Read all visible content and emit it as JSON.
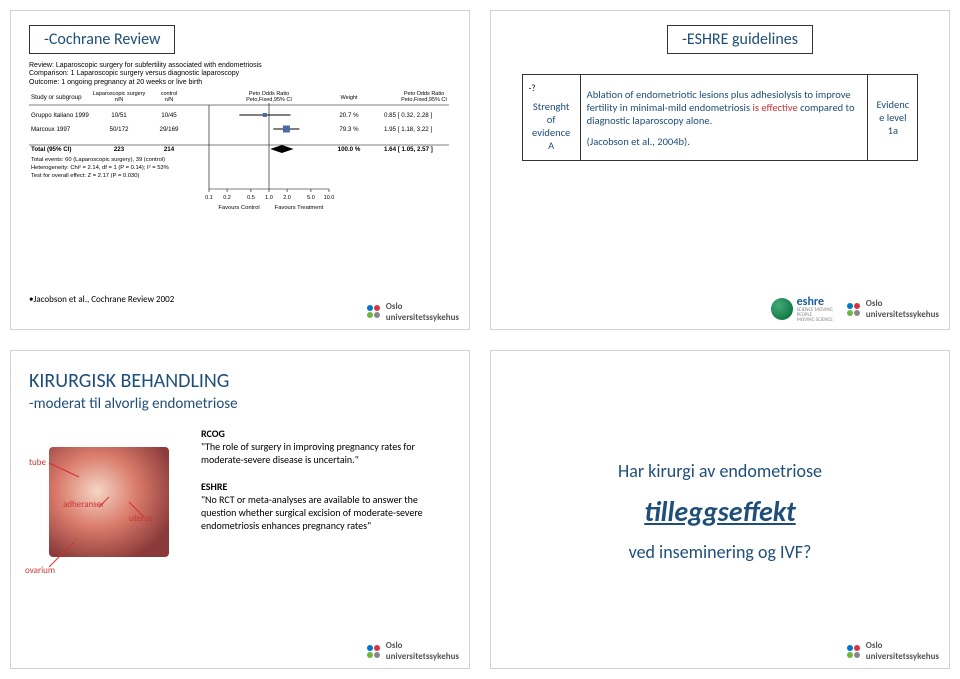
{
  "slide1": {
    "title": "-Cochrane Review",
    "forest": {
      "review_line": "Review: Laparoscopic surgery for subfertility associated with endometriosis",
      "comparison_line": "Comparison: 1 Laparoscopic surgery versus diagnostic laparoscopy",
      "outcome_line": "Outcome: 1 ongoing pregnancy at 20 weeks or live birth",
      "headers": [
        "Study or subgroup",
        "Laparoscopic surgery n/N",
        "control n/N",
        "Peto Odds Ratio Peto,Fixed,95% CI",
        "Weight",
        "Peto Odds Ratio Peto,Fixed,95% CI"
      ],
      "rows": [
        {
          "study": "Gruppo Italiano 1999",
          "t": "10/51",
          "c": "10/45",
          "weight": "20.7 %",
          "or": "0.85 [ 0.32, 2.28 ]",
          "x": 0.85,
          "lo": 0.32,
          "hi": 2.28
        },
        {
          "study": "Marcoux 1997",
          "t": "50/172",
          "c": "29/169",
          "weight": "79.3 %",
          "or": "1.95 [ 1.18, 3.22 ]",
          "x": 1.95,
          "lo": 1.18,
          "hi": 3.22
        }
      ],
      "total_label": "Total (95% CI)",
      "total_t": "223",
      "total_c": "214",
      "total_weight": "100.0 %",
      "total_or": "1.64 [ 1.05, 2.57 ]",
      "total_x": 1.64,
      "total_lo": 1.05,
      "total_hi": 2.57,
      "events": "Total events: 60 (Laparoscopic surgery), 39 (control)",
      "het": "Heterogeneity: Chi² = 2.14, df = 1 (P = 0.14); I² = 53%",
      "overall": "Test for overall effect: Z = 2.17 (P = 0.030)",
      "ticks": [
        "0.1",
        "0.2",
        "0.5",
        "1.0",
        "2.0",
        "5.0",
        "10.0"
      ],
      "fav_l": "Favours Control",
      "fav_r": "Favours Treatment"
    },
    "ref": "•Jacobson et al., Cochrane Review 2002",
    "logo_text": "Oslo\nuniversitetssykehus"
  },
  "slide2": {
    "title": "-ESHRE guidelines",
    "col1_top": "-?",
    "col1_a": "Strenght of evidence",
    "col1_b": "A",
    "col2": "Ablation of endometriotic lesions plus adhesiolysis to improve fertility in minimal-mild endometriosis is effective compared to diagnostic laparoscopy alone.",
    "col2_ref": "(Jacobson et al., 2004b).",
    "col3_a": "Evidenc e level",
    "col3_b": "1a",
    "eshre_label": "eshre",
    "logo_text": "Oslo\nuniversitetssykehus"
  },
  "slide3": {
    "title": "KIRURGISK BEHANDLING",
    "subtitle": "-moderat til alvorlig endometriose",
    "labels": {
      "tube": "tube",
      "adh": "adheranser",
      "uterus": "uterus",
      "ovarium": "ovarium"
    },
    "rcog_h": "RCOG",
    "rcog_t": "\"The role of surgery in improving pregnancy rates for moderate-severe disease is uncertain.\"",
    "eshre_h": "ESHRE",
    "eshre_t": "\"No RCT or meta-analyses are available to answer the question whether surgical excision of moderate-severe endometriosis enhances pregnancy rates\"",
    "logo_text": "Oslo\nuniversitetssykehus"
  },
  "slide4": {
    "line1": "Har kirurgi av endometriose",
    "line2": "tilleggseffekt",
    "line3": "ved inseminering og IVF?",
    "logo_text": "Oslo\nuniversitetssykehus"
  },
  "colors": {
    "title": "#1f4e79",
    "red": "#cc3333",
    "border": "#333333"
  }
}
